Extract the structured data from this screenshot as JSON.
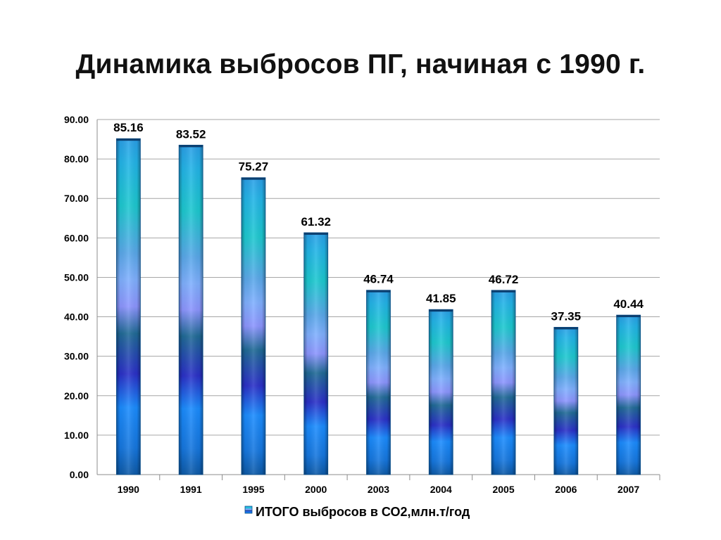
{
  "slide": {
    "title": "Динамика выбросов ПГ, начиная с 1990 г."
  },
  "chart_data": {
    "type": "bar",
    "title": "",
    "xlabel": "",
    "ylabel": "",
    "categories": [
      "1990",
      "1991",
      "1995",
      "2000",
      "2003",
      "2004",
      "2005",
      "2006",
      "2007"
    ],
    "series": [
      {
        "name": "ИТОГО выбросов в СО2,млн.т/год",
        "values": [
          85.16,
          83.52,
          75.27,
          61.32,
          46.74,
          41.85,
          46.72,
          37.35,
          40.44
        ]
      }
    ],
    "data_labels": [
      "85.16",
      "83.52",
      "75.27",
      "61.32",
      "46.74",
      "41.85",
      "46.72",
      "37.35",
      "40.44"
    ],
    "ylim": [
      0,
      90
    ],
    "ytick_labels": [
      "0.00",
      "10.00",
      "20.00",
      "30.00",
      "40.00",
      "50.00",
      "60.00",
      "70.00",
      "80.00",
      "90.00"
    ],
    "grid": true,
    "legend": "bottom",
    "colors": {
      "bar_top": "#1fc7d4",
      "bar_mid": "#8f9fff",
      "bar_dark": "#2a34c8",
      "bar_bottom": "#1a7fe0",
      "grid": "#a6a6a6"
    }
  }
}
